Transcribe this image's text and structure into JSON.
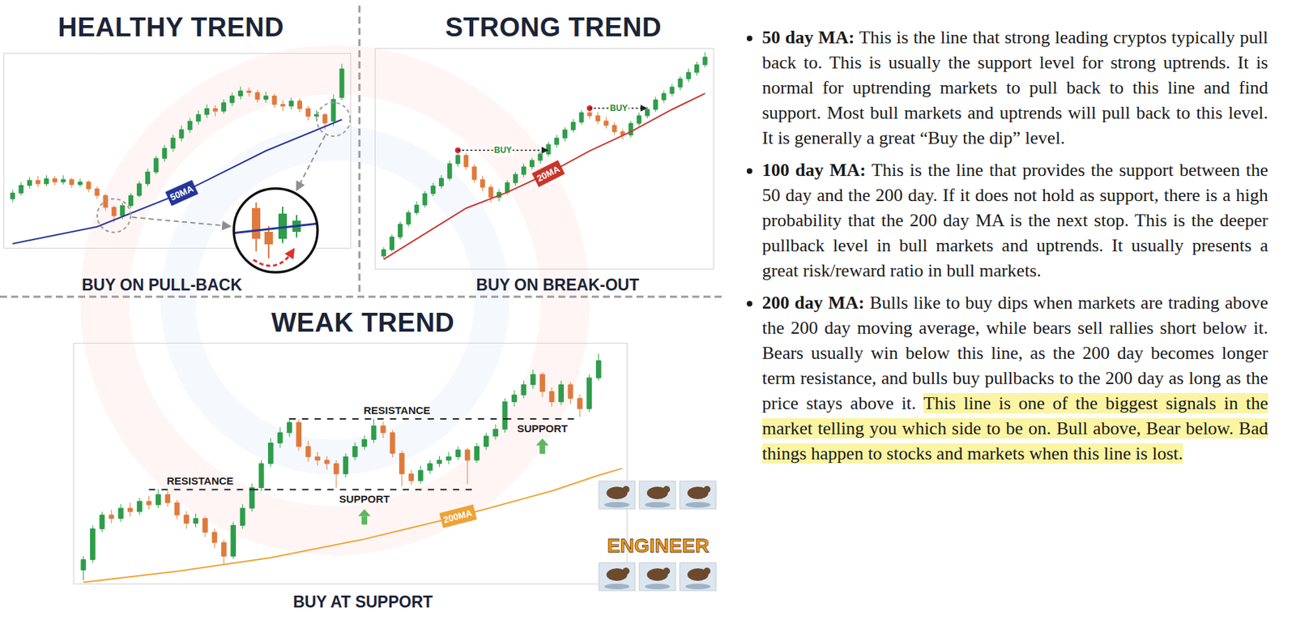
{
  "chart_data": [
    {
      "type": "candlestick",
      "title": "HEALTHY TREND",
      "caption": "BUY ON PULL-BACK",
      "xlim": [
        -1,
        40
      ],
      "ylim": [
        10,
        240
      ],
      "tick_labels": false,
      "grid": false,
      "series": [
        {
          "type": "candlestick",
          "x": [
            0,
            1,
            2,
            3,
            4,
            5,
            6,
            7,
            8,
            9,
            10,
            11,
            12,
            13,
            14,
            15,
            16,
            17,
            18,
            19,
            20,
            21,
            22,
            23,
            24,
            25,
            26,
            27,
            28,
            29,
            30,
            31,
            32,
            33,
            34,
            35,
            36,
            37,
            38,
            39
          ],
          "open": [
            68,
            75,
            84,
            90,
            86,
            92,
            88,
            91,
            85,
            88,
            80,
            72,
            58,
            48,
            60,
            72,
            86,
            100,
            116,
            128,
            140,
            150,
            160,
            168,
            175,
            172,
            182,
            190,
            196,
            194,
            186,
            190,
            180,
            178,
            184,
            175,
            166,
            168,
            160,
            188
          ],
          "high": [
            79,
            88,
            94,
            95,
            96,
            95,
            96,
            93,
            92,
            90,
            83,
            74,
            60,
            63,
            75,
            89,
            104,
            119,
            132,
            144,
            155,
            164,
            173,
            180,
            179,
            186,
            194,
            201,
            200,
            197,
            195,
            193,
            185,
            188,
            187,
            178,
            173,
            170,
            192,
            228
          ],
          "low": [
            64,
            72,
            80,
            82,
            83,
            84,
            85,
            81,
            82,
            76,
            68,
            54,
            40,
            44,
            57,
            70,
            83,
            97,
            112,
            124,
            136,
            146,
            156,
            164,
            166,
            169,
            178,
            186,
            189,
            182,
            182,
            176,
            172,
            174,
            171,
            161,
            162,
            150,
            154,
            185
          ],
          "close": [
            75,
            84,
            90,
            86,
            92,
            88,
            91,
            85,
            88,
            80,
            72,
            58,
            48,
            60,
            72,
            86,
            100,
            116,
            128,
            140,
            150,
            160,
            168,
            175,
            172,
            182,
            190,
            196,
            194,
            186,
            190,
            180,
            178,
            184,
            175,
            166,
            168,
            158,
            186,
            222
          ]
        },
        {
          "type": "line",
          "name": "50MA",
          "color": "#27359a",
          "x": [
            0,
            10,
            20,
            30,
            39
          ],
          "values": [
            15,
            35,
            75,
            125,
            162
          ]
        }
      ]
    },
    {
      "type": "candlestick",
      "title": "STRONG TREND",
      "caption": "BUY ON BREAK-OUT",
      "xlim": [
        -1,
        40
      ],
      "ylim": [
        0,
        345
      ],
      "tick_labels": false,
      "grid": false,
      "series": [
        {
          "type": "candlestick",
          "x": [
            0,
            1,
            2,
            3,
            4,
            5,
            6,
            7,
            8,
            9,
            10,
            11,
            12,
            13,
            14,
            15,
            16,
            17,
            18,
            19,
            20,
            21,
            22,
            23,
            24,
            25,
            26,
            27,
            28,
            29,
            30,
            31,
            32,
            33,
            34,
            35,
            36,
            37,
            38,
            39
          ],
          "open": [
            20,
            30,
            50,
            70,
            88,
            100,
            118,
            130,
            142,
            165,
            178,
            160,
            140,
            128,
            112,
            120,
            135,
            148,
            160,
            170,
            180,
            195,
            205,
            218,
            230,
            245,
            240,
            232,
            225,
            215,
            210,
            228,
            240,
            250,
            265,
            275,
            285,
            298,
            308,
            320
          ],
          "high": [
            34,
            54,
            74,
            92,
            106,
            122,
            135,
            147,
            170,
            186,
            182,
            164,
            146,
            132,
            125,
            139,
            152,
            165,
            174,
            184,
            199,
            210,
            222,
            235,
            249,
            252,
            246,
            238,
            230,
            220,
            232,
            245,
            254,
            270,
            280,
            290,
            302,
            314,
            325,
            340
          ],
          "low": [
            16,
            27,
            46,
            66,
            84,
            96,
            114,
            126,
            138,
            160,
            155,
            135,
            122,
            104,
            106,
            116,
            130,
            144,
            156,
            165,
            176,
            190,
            200,
            214,
            226,
            235,
            227,
            220,
            210,
            203,
            206,
            224,
            236,
            246,
            260,
            270,
            280,
            293,
            303,
            316
          ],
          "close": [
            30,
            50,
            70,
            88,
            100,
            118,
            130,
            142,
            165,
            178,
            160,
            140,
            128,
            112,
            120,
            135,
            148,
            160,
            170,
            180,
            195,
            205,
            218,
            230,
            245,
            240,
            232,
            225,
            215,
            210,
            228,
            240,
            250,
            265,
            275,
            285,
            298,
            308,
            320,
            332
          ]
        },
        {
          "type": "line",
          "name": "20MA",
          "color": "#c8352b",
          "x": [
            0,
            5,
            10,
            15,
            20,
            25,
            30,
            35,
            39
          ],
          "values": [
            15,
            55,
            95,
            120,
            150,
            185,
            215,
            250,
            275
          ]
        }
      ],
      "breakouts": [
        {
          "label": "BUY",
          "x0": 9,
          "x1": 20,
          "y": 186
        },
        {
          "label": "BUY",
          "x0": 25,
          "x1": 32,
          "y": 252
        }
      ]
    },
    {
      "type": "candlestick",
      "title": "WEAK TREND",
      "caption": "BUY AT SUPPORT",
      "xlim": [
        -1,
        58
      ],
      "ylim": [
        0,
        350
      ],
      "tick_labels": false,
      "grid": false,
      "series": [
        {
          "type": "candlestick",
          "x": [
            0,
            1,
            2,
            3,
            4,
            5,
            6,
            7,
            8,
            9,
            10,
            11,
            12,
            13,
            14,
            15,
            16,
            17,
            18,
            19,
            20,
            21,
            22,
            23,
            24,
            25,
            26,
            27,
            28,
            29,
            30,
            31,
            32,
            33,
            34,
            35,
            36,
            37,
            38,
            39,
            40,
            41,
            42,
            43,
            44,
            45,
            46,
            47,
            48,
            49,
            50,
            51,
            52,
            53,
            54,
            55
          ],
          "open": [
            20,
            35,
            80,
            100,
            95,
            110,
            105,
            120,
            115,
            130,
            118,
            100,
            88,
            95,
            75,
            60,
            40,
            85,
            110,
            140,
            175,
            205,
            220,
            235,
            200,
            185,
            180,
            175,
            160,
            185,
            200,
            210,
            230,
            220,
            190,
            160,
            150,
            165,
            175,
            180,
            185,
            195,
            180,
            200,
            215,
            225,
            265,
            275,
            290,
            305,
            280,
            265,
            290,
            270,
            255,
            300
          ],
          "high": [
            40,
            85,
            105,
            108,
            116,
            118,
            125,
            128,
            138,
            135,
            122,
            106,
            102,
            98,
            80,
            64,
            90,
            116,
            146,
            180,
            212,
            228,
            242,
            240,
            208,
            192,
            186,
            180,
            190,
            206,
            216,
            240,
            236,
            224,
            194,
            166,
            172,
            180,
            186,
            192,
            200,
            198,
            205,
            220,
            232,
            270,
            282,
            296,
            312,
            308,
            286,
            296,
            294,
            276,
            305,
            335
          ],
          "low": [
            5,
            30,
            75,
            88,
            90,
            98,
            100,
            108,
            110,
            112,
            94,
            80,
            82,
            68,
            52,
            28,
            36,
            80,
            105,
            135,
            170,
            198,
            214,
            194,
            178,
            172,
            166,
            140,
            155,
            180,
            195,
            205,
            212,
            184,
            142,
            144,
            146,
            160,
            170,
            174,
            180,
            145,
            176,
            195,
            210,
            220,
            258,
            270,
            284,
            272,
            258,
            260,
            262,
            243,
            250,
            296
          ],
          "close": [
            35,
            80,
            100,
            95,
            110,
            105,
            120,
            115,
            130,
            118,
            100,
            88,
            95,
            75,
            60,
            40,
            85,
            110,
            140,
            175,
            205,
            220,
            235,
            200,
            185,
            180,
            175,
            160,
            185,
            200,
            210,
            230,
            220,
            190,
            160,
            150,
            165,
            175,
            180,
            185,
            195,
            180,
            200,
            215,
            225,
            265,
            275,
            290,
            305,
            280,
            265,
            290,
            270,
            255,
            300,
            325
          ]
        },
        {
          "type": "line",
          "name": "200MA",
          "color": "#eea332",
          "x": [
            0,
            10,
            20,
            30,
            40,
            50,
            55,
            57.5
          ],
          "values": [
            2,
            18,
            38,
            65,
            98,
            135,
            158,
            168
          ]
        }
      ],
      "levels": [
        {
          "label": "RESISTANCE",
          "y": 137,
          "x0": 7,
          "x1": 18
        },
        {
          "label": "SUPPORT",
          "y": 137,
          "x0": 18,
          "x1": 42
        },
        {
          "label": "RESISTANCE",
          "y": 240,
          "x0": 22,
          "x1": 45
        },
        {
          "label": "SUPPORT",
          "y": 240,
          "x0": 45,
          "x1": 53
        }
      ]
    }
  ],
  "text_panel": {
    "items": [
      {
        "label": "50 day MA:",
        "text": "This is the line that strong leading cryptos typically pull back to. This is usually the support level for strong uptrends. It is normal for uptrending markets to pull back to this line and find support. Most bull markets and uptrends will pull back to this level. It is generally a great “Buy the dip” level."
      },
      {
        "label": "100 day MA:",
        "text": "This is the line that provides the support between the 50 day and the 200 day. If it does not hold as support, there is a high probability that the 200 day MA is the next stop. This is the deeper pullback level in bull markets and uptrends. It usually presents a great risk/reward ratio in bull markets."
      },
      {
        "label": "200 day MA:",
        "text": "Bulls like to buy dips when markets are trading above the 200 day moving average, while bears sell rallies short below it. Bears usually win below this line, as the 200 day becomes longer term resistance, and bulls buy pullbacks to the 200 day as long as the price stays above it.",
        "highlight": "This line is one of the biggest signals in the market telling you which side to be on. Bull above, Bear below. Bad things happen to stocks and markets when this line is lost."
      }
    ]
  },
  "badge": {
    "text": "ENGINEER"
  }
}
